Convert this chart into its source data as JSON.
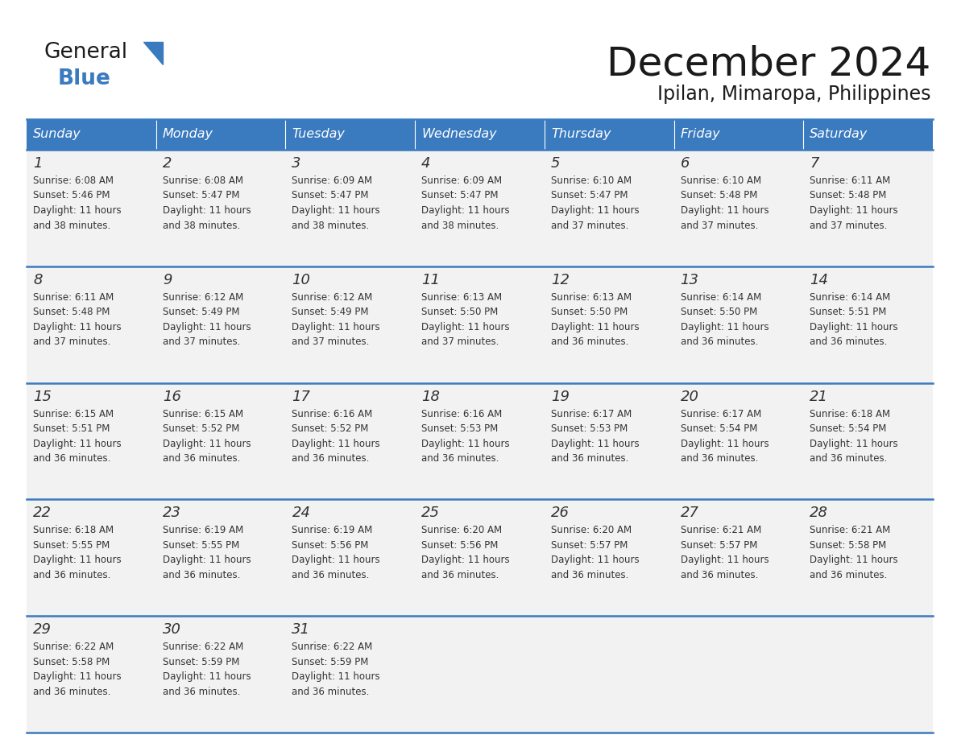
{
  "title": "December 2024",
  "subtitle": "Ipilan, Mimaropa, Philippines",
  "days_of_week": [
    "Sunday",
    "Monday",
    "Tuesday",
    "Wednesday",
    "Thursday",
    "Friday",
    "Saturday"
  ],
  "header_bg": "#3a7abf",
  "header_text": "#ffffff",
  "cell_bg": "#f2f2f2",
  "line_color": "#3a7abf",
  "text_color": "#333333",
  "title_color": "#1a1a1a",
  "logo_black": "#1a1a1a",
  "logo_blue": "#3a7abf",
  "calendar_data": [
    [
      {
        "day": 1,
        "sunrise": "6:08 AM",
        "sunset": "5:46 PM",
        "daylight": "11 hours and 38 minutes"
      },
      {
        "day": 2,
        "sunrise": "6:08 AM",
        "sunset": "5:47 PM",
        "daylight": "11 hours and 38 minutes"
      },
      {
        "day": 3,
        "sunrise": "6:09 AM",
        "sunset": "5:47 PM",
        "daylight": "11 hours and 38 minutes"
      },
      {
        "day": 4,
        "sunrise": "6:09 AM",
        "sunset": "5:47 PM",
        "daylight": "11 hours and 38 minutes"
      },
      {
        "day": 5,
        "sunrise": "6:10 AM",
        "sunset": "5:47 PM",
        "daylight": "11 hours and 37 minutes"
      },
      {
        "day": 6,
        "sunrise": "6:10 AM",
        "sunset": "5:48 PM",
        "daylight": "11 hours and 37 minutes"
      },
      {
        "day": 7,
        "sunrise": "6:11 AM",
        "sunset": "5:48 PM",
        "daylight": "11 hours and 37 minutes"
      }
    ],
    [
      {
        "day": 8,
        "sunrise": "6:11 AM",
        "sunset": "5:48 PM",
        "daylight": "11 hours and 37 minutes"
      },
      {
        "day": 9,
        "sunrise": "6:12 AM",
        "sunset": "5:49 PM",
        "daylight": "11 hours and 37 minutes"
      },
      {
        "day": 10,
        "sunrise": "6:12 AM",
        "sunset": "5:49 PM",
        "daylight": "11 hours and 37 minutes"
      },
      {
        "day": 11,
        "sunrise": "6:13 AM",
        "sunset": "5:50 PM",
        "daylight": "11 hours and 37 minutes"
      },
      {
        "day": 12,
        "sunrise": "6:13 AM",
        "sunset": "5:50 PM",
        "daylight": "11 hours and 36 minutes"
      },
      {
        "day": 13,
        "sunrise": "6:14 AM",
        "sunset": "5:50 PM",
        "daylight": "11 hours and 36 minutes"
      },
      {
        "day": 14,
        "sunrise": "6:14 AM",
        "sunset": "5:51 PM",
        "daylight": "11 hours and 36 minutes"
      }
    ],
    [
      {
        "day": 15,
        "sunrise": "6:15 AM",
        "sunset": "5:51 PM",
        "daylight": "11 hours and 36 minutes"
      },
      {
        "day": 16,
        "sunrise": "6:15 AM",
        "sunset": "5:52 PM",
        "daylight": "11 hours and 36 minutes"
      },
      {
        "day": 17,
        "sunrise": "6:16 AM",
        "sunset": "5:52 PM",
        "daylight": "11 hours and 36 minutes"
      },
      {
        "day": 18,
        "sunrise": "6:16 AM",
        "sunset": "5:53 PM",
        "daylight": "11 hours and 36 minutes"
      },
      {
        "day": 19,
        "sunrise": "6:17 AM",
        "sunset": "5:53 PM",
        "daylight": "11 hours and 36 minutes"
      },
      {
        "day": 20,
        "sunrise": "6:17 AM",
        "sunset": "5:54 PM",
        "daylight": "11 hours and 36 minutes"
      },
      {
        "day": 21,
        "sunrise": "6:18 AM",
        "sunset": "5:54 PM",
        "daylight": "11 hours and 36 minutes"
      }
    ],
    [
      {
        "day": 22,
        "sunrise": "6:18 AM",
        "sunset": "5:55 PM",
        "daylight": "11 hours and 36 minutes"
      },
      {
        "day": 23,
        "sunrise": "6:19 AM",
        "sunset": "5:55 PM",
        "daylight": "11 hours and 36 minutes"
      },
      {
        "day": 24,
        "sunrise": "6:19 AM",
        "sunset": "5:56 PM",
        "daylight": "11 hours and 36 minutes"
      },
      {
        "day": 25,
        "sunrise": "6:20 AM",
        "sunset": "5:56 PM",
        "daylight": "11 hours and 36 minutes"
      },
      {
        "day": 26,
        "sunrise": "6:20 AM",
        "sunset": "5:57 PM",
        "daylight": "11 hours and 36 minutes"
      },
      {
        "day": 27,
        "sunrise": "6:21 AM",
        "sunset": "5:57 PM",
        "daylight": "11 hours and 36 minutes"
      },
      {
        "day": 28,
        "sunrise": "6:21 AM",
        "sunset": "5:58 PM",
        "daylight": "11 hours and 36 minutes"
      }
    ],
    [
      {
        "day": 29,
        "sunrise": "6:22 AM",
        "sunset": "5:58 PM",
        "daylight": "11 hours and 36 minutes"
      },
      {
        "day": 30,
        "sunrise": "6:22 AM",
        "sunset": "5:59 PM",
        "daylight": "11 hours and 36 minutes"
      },
      {
        "day": 31,
        "sunrise": "6:22 AM",
        "sunset": "5:59 PM",
        "daylight": "11 hours and 36 minutes"
      },
      null,
      null,
      null,
      null
    ]
  ]
}
